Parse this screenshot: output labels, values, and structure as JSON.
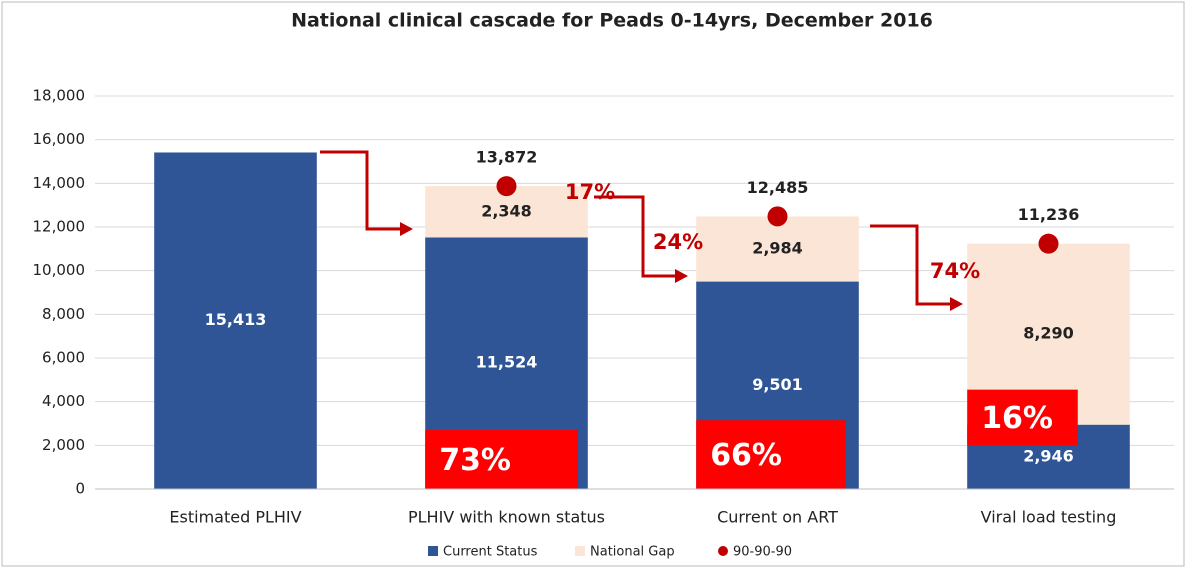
{
  "chart_data": {
    "type": "bar",
    "title": "National clinical cascade for Peads 0-14yrs, December 2016",
    "categories": [
      "Estimated PLHIV",
      "PLHIV with known status",
      "Current on ART",
      "Viral load testing"
    ],
    "series": [
      {
        "name": "Current Status",
        "color": "#2f5597",
        "values": [
          15413,
          11524,
          9501,
          2946
        ],
        "value_labels": [
          "15,413",
          "11,524",
          "9,501",
          "2,946"
        ]
      },
      {
        "name": "National Gap",
        "color": "#fbe5d6",
        "values": [
          null,
          2348,
          2984,
          8290
        ],
        "value_labels": [
          null,
          "2,348",
          "2,984",
          "8,290"
        ]
      },
      {
        "name": "90-90-90",
        "color": "#c00000",
        "marker": "dot",
        "values": [
          null,
          13872,
          12485,
          11236
        ],
        "value_labels": [
          null,
          "13,872",
          "12,485",
          "11,236"
        ]
      }
    ],
    "ylim": [
      0,
      18000
    ],
    "yticks": [
      0,
      {
        "value": 2000,
        "label": "2,000"
      },
      {
        "value": 4000,
        "label": "4,000"
      },
      {
        "value": 6000,
        "label": "6,000"
      },
      {
        "value": 8000,
        "label": "8,000"
      },
      {
        "value": 10000,
        "label": "10,000"
      },
      {
        "value": 12000,
        "label": "12,000"
      },
      {
        "value": 14000,
        "label": "14,000"
      },
      {
        "value": 16000,
        "label": "16,000"
      },
      {
        "value": 18000,
        "label": "18,000"
      }
    ],
    "grid": true,
    "legend": "bottom",
    "arrow_labels": [
      "17%",
      "24%",
      "74%"
    ],
    "box_labels": [
      "73%",
      "66%",
      "16%"
    ]
  }
}
